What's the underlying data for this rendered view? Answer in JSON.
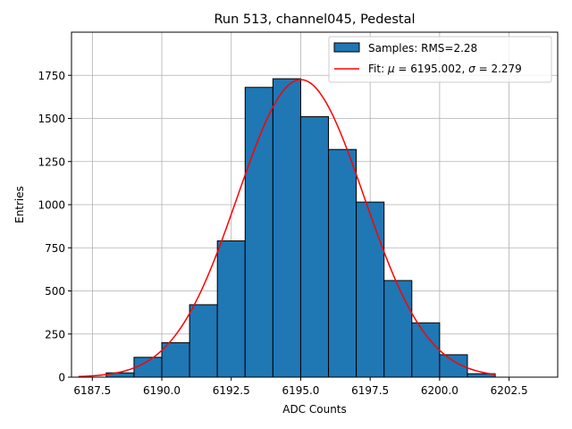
{
  "chart_data": {
    "type": "bar",
    "title": "Run 513, channel045, Pedestal",
    "xlabel": "ADC Counts",
    "ylabel": "Entries",
    "xlim": [
      6186.75,
      6204.25
    ],
    "ylim": [
      0,
      2000
    ],
    "grid": true,
    "legend_position": "top-right",
    "xticks": [
      6187.5,
      6190.0,
      6192.5,
      6195.0,
      6197.5,
      6200.0,
      6202.5
    ],
    "xtick_labels": [
      "6187.5",
      "6190.0",
      "6192.5",
      "6195.0",
      "6197.5",
      "6200.0",
      "6202.5"
    ],
    "yticks": [
      0,
      250,
      500,
      750,
      1000,
      1250,
      1500,
      1750
    ],
    "ytick_labels": [
      "0",
      "250",
      "500",
      "750",
      "1000",
      "1250",
      "1500",
      "1750"
    ],
    "bins": [
      {
        "x0": 6188,
        "x1": 6189,
        "count": 25
      },
      {
        "x0": 6189,
        "x1": 6190,
        "count": 115
      },
      {
        "x0": 6190,
        "x1": 6191,
        "count": 200
      },
      {
        "x0": 6191,
        "x1": 6192,
        "count": 420
      },
      {
        "x0": 6192,
        "x1": 6193,
        "count": 790
      },
      {
        "x0": 6193,
        "x1": 6194,
        "count": 1680
      },
      {
        "x0": 6194,
        "x1": 6195,
        "count": 1730
      },
      {
        "x0": 6195,
        "x1": 6196,
        "count": 1510
      },
      {
        "x0": 6196,
        "x1": 6197,
        "count": 1320
      },
      {
        "x0": 6197,
        "x1": 6198,
        "count": 1015
      },
      {
        "x0": 6198,
        "x1": 6199,
        "count": 560
      },
      {
        "x0": 6199,
        "x1": 6200,
        "count": 315
      },
      {
        "x0": 6200,
        "x1": 6201,
        "count": 130
      },
      {
        "x0": 6201,
        "x1": 6202,
        "count": 20
      }
    ],
    "fit": {
      "mu": 6195.002,
      "sigma": 2.279,
      "amplitude": 1725,
      "range": [
        6187.0,
        6202.0
      ]
    },
    "series": [
      {
        "name": "Samples: RMS=2.28",
        "kind": "histogram",
        "color": "#1f77b4"
      },
      {
        "name_prefix": "Fit: ",
        "mu_label": "μ",
        "mu_text": " = 6195.002, ",
        "sigma_label": "σ",
        "sigma_text": " = 2.279",
        "kind": "line",
        "color": "#ff0000"
      }
    ]
  },
  "colors": {
    "bar_fill": "#1f77b4",
    "bar_edge": "#000000",
    "fit_line": "#ff0000",
    "grid": "#b0b0b0"
  }
}
